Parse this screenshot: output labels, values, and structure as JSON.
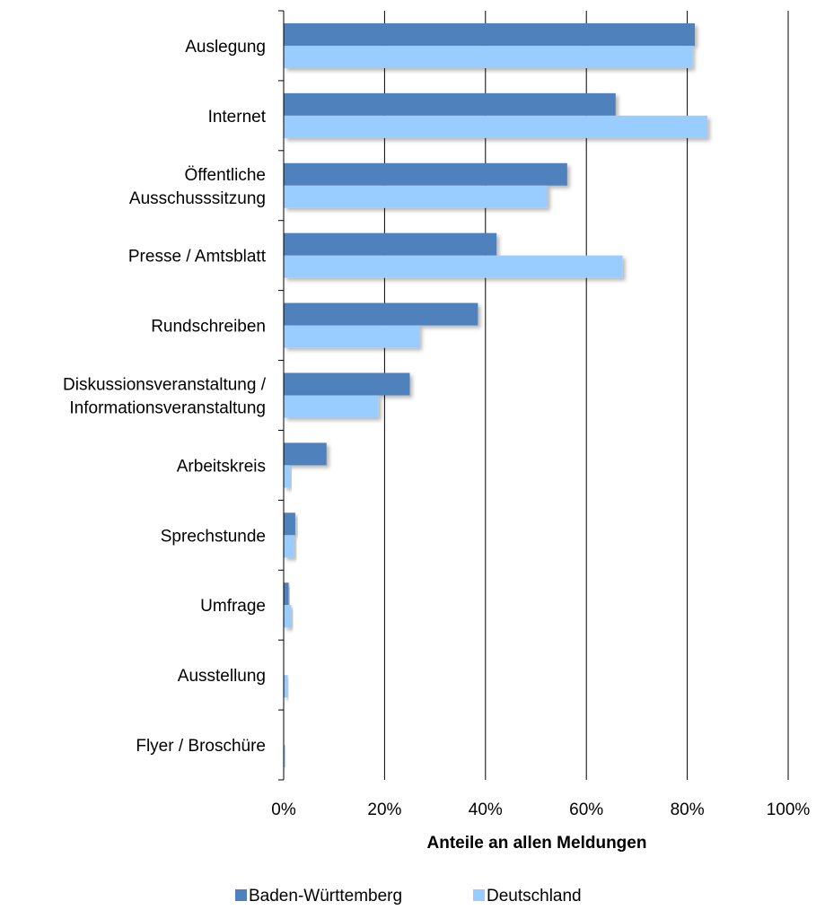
{
  "chart_data": {
    "type": "bar",
    "orientation": "horizontal",
    "categories": [
      "Auslegung",
      "Internet",
      "Öffentliche\nAusschusssitzung",
      "Presse / Amtsblatt",
      "Rundschreiben",
      "Diskussionsveranstaltung /\nInformationsveranstaltung",
      "Arbeitskreis",
      "Sprechstunde",
      "Umfrage",
      "Ausstellung",
      "Flyer / Broschüre"
    ],
    "series": [
      {
        "name": "Baden-Württemberg",
        "color": "#4f81bd",
        "values": [
          81.5,
          65.8,
          56.2,
          42.2,
          38.5,
          25.0,
          8.5,
          2.3,
          1.0,
          0.0,
          0.0
        ]
      },
      {
        "name": "Deutschland",
        "color": "#99ccff",
        "values": [
          81.0,
          84.0,
          52.3,
          67.2,
          26.9,
          18.8,
          1.3,
          2.1,
          1.5,
          0.8,
          0.3
        ]
      }
    ],
    "xlabel": "Anteile an allen Meldungen",
    "xlim": [
      0,
      100
    ],
    "xticks": [
      "0%",
      "20%",
      "40%",
      "60%",
      "80%",
      "100%"
    ],
    "grid": true,
    "legend_position": "bottom"
  }
}
